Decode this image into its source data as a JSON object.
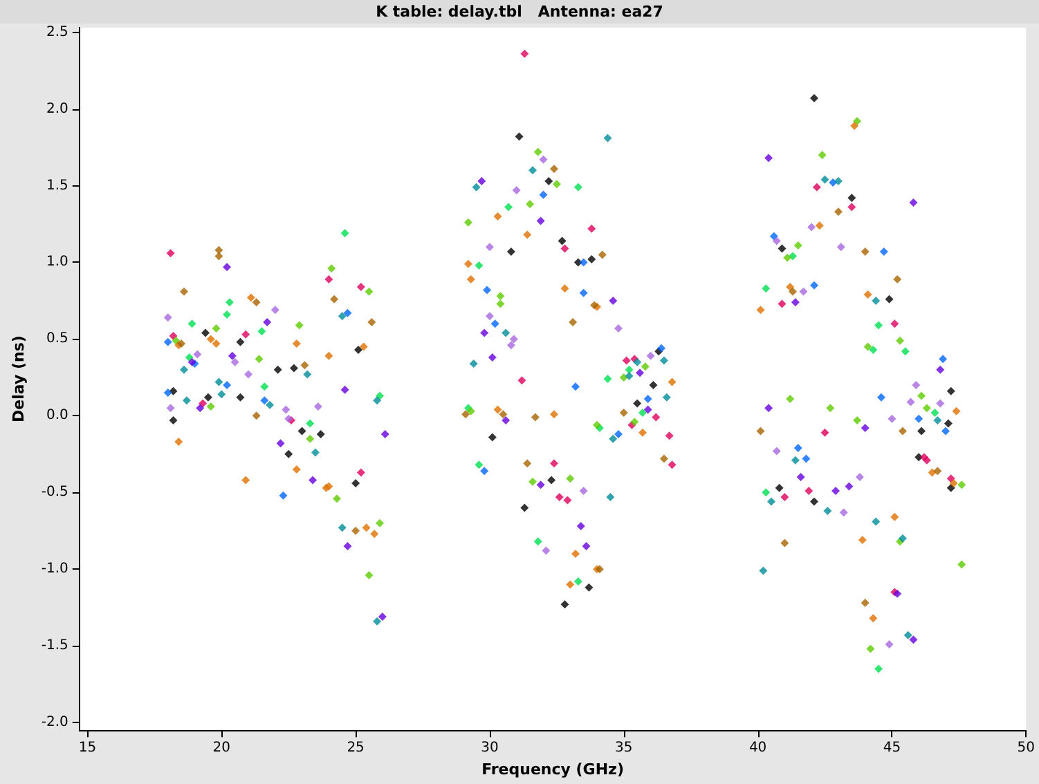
{
  "chart_data": {
    "type": "scatter",
    "title": "K table: delay.tbl   Antenna: ea27",
    "xlabel": "Frequency (GHz)",
    "ylabel": "Delay (ns)",
    "marker": "diamond",
    "xlim": [
      14.7,
      50
    ],
    "ylim": [
      -2.05,
      2.53
    ],
    "xticks": [
      15,
      20,
      25,
      30,
      35,
      40,
      45,
      50
    ],
    "yticks": [
      {
        "value": -2,
        "label": "-2.0"
      },
      {
        "value": -1.5,
        "label": "-1.5"
      },
      {
        "value": -1,
        "label": "-1.0"
      },
      {
        "value": -0.5,
        "label": "-0.5"
      },
      {
        "value": 0,
        "label": "0.0"
      },
      {
        "value": 0.5,
        "label": "0.5"
      },
      {
        "value": 1,
        "label": "1.0"
      },
      {
        "value": 1.5,
        "label": "1.5"
      },
      {
        "value": 2,
        "label": "2.0"
      },
      {
        "value": 2.5,
        "label": "2.5"
      }
    ],
    "series": [
      {
        "color": "#000000",
        "x": [
          18.2,
          18.2,
          19.5,
          19.4,
          20.7,
          20.7,
          22.1,
          22.5,
          22.7,
          23.0,
          23.7,
          25.1,
          25.0,
          30.1,
          30.8,
          31.1,
          31.3,
          32.2,
          32.3,
          32.7,
          32.8,
          33.3,
          33.7,
          33.8,
          35.5,
          36.1,
          36.3,
          40.8,
          40.9,
          42.1,
          42.1,
          43.5,
          44.9,
          46.0,
          46.1,
          47.1,
          47.2,
          47.2
        ],
        "values": [
          0.16,
          -0.03,
          0.12,
          0.54,
          0.48,
          0.12,
          0.3,
          -0.25,
          0.31,
          -0.1,
          -0.12,
          0.43,
          -0.44,
          -0.14,
          1.07,
          1.82,
          -0.6,
          1.53,
          -0.42,
          1.14,
          -1.23,
          1.0,
          -1.12,
          1.02,
          0.08,
          0.2,
          0.42,
          -0.47,
          1.09,
          2.07,
          -0.56,
          1.42,
          0.76,
          -0.27,
          -0.1,
          -0.05,
          0.16,
          -0.47
        ]
      },
      {
        "color": "#e0005c",
        "x": [
          18.1,
          18.2,
          19.3,
          20.9,
          22.6,
          24.0,
          25.2,
          25.2,
          31.2,
          31.3,
          32.4,
          32.6,
          32.8,
          32.9,
          33.8,
          35.1,
          35.3,
          35.4,
          36.2,
          36.7,
          36.8,
          40.9,
          41.0,
          41.9,
          42.2,
          42.5,
          43.5,
          45.1,
          45.1,
          46.2,
          46.3,
          47.2
        ],
        "values": [
          1.06,
          0.52,
          0.08,
          0.53,
          -0.03,
          0.89,
          -0.37,
          0.84,
          0.23,
          2.36,
          -0.31,
          -0.53,
          1.09,
          -0.55,
          1.22,
          0.36,
          -0.06,
          0.37,
          -0.01,
          -0.13,
          -0.32,
          0.73,
          -0.53,
          -0.49,
          1.49,
          -0.11,
          1.36,
          0.6,
          -1.15,
          -0.27,
          -0.29,
          -0.41
        ]
      },
      {
        "color": "#0066ff",
        "x": [
          18.0,
          18.0,
          19.0,
          20.2,
          21.6,
          22.3,
          24.7,
          29.8,
          29.9,
          30.2,
          32.0,
          33.2,
          33.5,
          33.5,
          34.8,
          35.9,
          36.4,
          40.6,
          41.5,
          41.8,
          42.1,
          42.8,
          44.6,
          44.7,
          46.0,
          46.9,
          47.0
        ],
        "values": [
          0.48,
          0.15,
          0.34,
          0.2,
          0.1,
          -0.52,
          0.67,
          -0.36,
          0.82,
          0.6,
          1.44,
          0.19,
          1.0,
          0.8,
          -0.12,
          0.11,
          0.44,
          1.17,
          -0.21,
          -0.28,
          0.85,
          1.52,
          0.12,
          1.07,
          -0.02,
          0.37,
          -0.1
        ]
      },
      {
        "color": "#00e050",
        "x": [
          18.9,
          18.8,
          20.2,
          20.3,
          21.6,
          21.5,
          23.3,
          24.6,
          25.9,
          29.2,
          29.6,
          29.6,
          30.7,
          31.8,
          33.3,
          33.3,
          34.1,
          34.4,
          35.2,
          35.7,
          40.3,
          40.3,
          41.3,
          44.3,
          44.5,
          44.5,
          45.5,
          46.6
        ],
        "values": [
          0.6,
          0.38,
          0.66,
          0.74,
          0.19,
          0.55,
          -0.05,
          1.19,
          0.13,
          0.05,
          0.98,
          -0.32,
          1.36,
          -0.82,
          1.49,
          -1.08,
          -0.08,
          0.24,
          0.3,
          0.02,
          0.83,
          -0.5,
          1.04,
          0.43,
          -1.65,
          0.59,
          0.42,
          0.02
        ]
      },
      {
        "color": "#5ccc00",
        "x": [
          18.3,
          19.6,
          19.8,
          21.4,
          22.9,
          23.3,
          24.1,
          24.3,
          25.5,
          25.5,
          25.9,
          29.2,
          29.3,
          30.4,
          30.4,
          31.5,
          31.6,
          31.8,
          32.5,
          33.0,
          34.0,
          35.0,
          35.4,
          35.8,
          41.1,
          41.2,
          41.5,
          42.4,
          42.7,
          43.7,
          43.7,
          44.1,
          44.2,
          45.3,
          45.3,
          46.1,
          46.3,
          47.6,
          47.6
        ],
        "values": [
          0.49,
          0.06,
          0.57,
          0.37,
          0.59,
          -0.15,
          0.96,
          -0.54,
          0.81,
          -1.04,
          -0.7,
          1.26,
          0.03,
          0.78,
          0.73,
          1.38,
          -0.43,
          1.72,
          1.51,
          -0.41,
          -0.06,
          0.25,
          -0.04,
          0.32,
          1.03,
          0.11,
          1.11,
          1.7,
          0.05,
          1.92,
          -0.03,
          0.45,
          -1.52,
          0.49,
          -0.82,
          0.13,
          0.05,
          -0.45,
          -0.97
        ]
      },
      {
        "color": "#e07000",
        "x": [
          18.4,
          18.4,
          19.6,
          19.8,
          20.9,
          21.1,
          22.8,
          22.8,
          23.9,
          24.0,
          24.0,
          25.3,
          25.4,
          25.7,
          29.2,
          29.3,
          30.3,
          30.3,
          31.4,
          32.4,
          32.8,
          33.0,
          33.2,
          34.0,
          34.0,
          35.7,
          36.8,
          40.1,
          41.2,
          42.3,
          43.6,
          43.9,
          44.1,
          44.3,
          45.1,
          46.5,
          47.3,
          47.4
        ],
        "values": [
          0.46,
          -0.17,
          0.5,
          0.47,
          -0.42,
          0.77,
          0.47,
          -0.35,
          -0.47,
          -0.46,
          0.39,
          0.45,
          -0.73,
          -0.77,
          0.99,
          0.89,
          1.3,
          0.04,
          1.18,
          0.01,
          0.83,
          -1.1,
          -0.9,
          0.71,
          -1.0,
          -0.11,
          0.22,
          0.69,
          0.84,
          1.24,
          1.89,
          -0.81,
          0.79,
          -1.32,
          -0.66,
          -0.37,
          -0.44,
          0.03
        ]
      },
      {
        "color": "#a86400",
        "x": [
          18.6,
          18.5,
          19.9,
          19.9,
          21.3,
          21.3,
          23.1,
          24.2,
          25.0,
          25.6,
          29.1,
          30.5,
          31.4,
          31.7,
          32.4,
          33.1,
          33.9,
          34.1,
          34.2,
          35.0,
          36.5,
          40.1,
          41.0,
          41.3,
          43.0,
          44.0,
          44.0,
          45.2,
          45.4,
          46.7
        ],
        "values": [
          0.81,
          0.47,
          1.08,
          1.04,
          0.74,
          0.0,
          0.33,
          0.76,
          -0.75,
          0.61,
          0.01,
          0.01,
          -0.31,
          -0.01,
          1.61,
          0.61,
          0.72,
          -1.0,
          1.05,
          0.02,
          -0.28,
          -0.1,
          -0.83,
          0.81,
          1.33,
          1.07,
          -1.22,
          0.89,
          -0.1,
          -0.36
        ]
      },
      {
        "color": "#6600dd",
        "x": [
          18.9,
          19.2,
          20.2,
          20.4,
          21.7,
          22.2,
          23.4,
          24.7,
          24.6,
          26.1,
          26.0,
          29.7,
          29.8,
          30.1,
          30.6,
          31.9,
          31.9,
          33.4,
          33.6,
          34.6,
          35.6,
          35.9,
          40.4,
          40.4,
          41.4,
          41.6,
          42.9,
          43.4,
          44.0,
          45.2,
          45.8,
          45.8,
          46.8
        ],
        "values": [
          0.35,
          0.05,
          0.97,
          0.39,
          0.61,
          -0.18,
          -0.42,
          -0.85,
          0.17,
          -0.12,
          -1.31,
          1.53,
          0.54,
          0.38,
          -0.03,
          1.27,
          -0.45,
          -0.72,
          -0.85,
          0.75,
          0.28,
          0.04,
          1.68,
          0.05,
          0.74,
          -0.4,
          -0.49,
          -0.46,
          -0.08,
          -1.16,
          -1.46,
          1.39,
          0.3
        ]
      },
      {
        "color": "#a868e0",
        "x": [
          18.0,
          18.1,
          19.1,
          20.5,
          21.0,
          22.0,
          22.4,
          22.5,
          23.6,
          30.0,
          30.0,
          30.8,
          30.9,
          31.0,
          32.0,
          32.1,
          33.5,
          34.8,
          36.0,
          40.7,
          40.7,
          41.7,
          42.0,
          43.1,
          43.2,
          43.8,
          44.9,
          45.0,
          45.7,
          45.9,
          46.8
        ],
        "values": [
          0.64,
          0.05,
          0.4,
          0.35,
          0.27,
          0.69,
          0.04,
          -0.02,
          0.06,
          1.1,
          0.65,
          0.46,
          0.5,
          1.47,
          1.67,
          -0.88,
          -0.49,
          0.57,
          0.39,
          1.14,
          -0.23,
          0.81,
          1.23,
          1.1,
          -0.63,
          -0.4,
          -1.49,
          -0.02,
          0.09,
          0.2,
          0.08
        ]
      },
      {
        "color": "#008c99",
        "x": [
          18.6,
          18.7,
          19.9,
          20.0,
          21.8,
          23.2,
          23.5,
          24.5,
          24.5,
          25.8,
          25.8,
          29.4,
          29.5,
          30.6,
          31.6,
          34.4,
          34.5,
          34.6,
          35.2,
          35.5,
          36.5,
          36.6,
          40.2,
          40.5,
          41.4,
          42.5,
          42.6,
          43.0,
          44.4,
          44.4,
          45.4,
          45.6,
          46.7
        ],
        "values": [
          0.3,
          0.1,
          0.22,
          0.14,
          0.07,
          0.27,
          -0.24,
          -0.73,
          0.65,
          0.1,
          -1.34,
          0.34,
          1.49,
          0.54,
          1.6,
          1.81,
          -0.53,
          -0.15,
          0.26,
          0.35,
          0.36,
          0.12,
          -1.01,
          -0.56,
          -0.29,
          1.54,
          -0.62,
          1.53,
          0.75,
          -0.69,
          -0.8,
          -1.43,
          -0.03
        ]
      }
    ]
  }
}
